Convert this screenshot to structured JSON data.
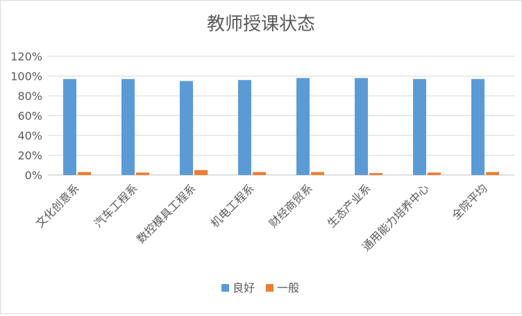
{
  "chart_data": {
    "type": "bar",
    "title": "教师授课状态",
    "categories": [
      "文化创意系",
      "汽车工程系",
      "数控模具工程系",
      "机电工程系",
      "财经商贸系",
      "生态产业系",
      "通用能力培养中心",
      "全院平均"
    ],
    "series": [
      {
        "name": "良好",
        "color": "#5B9BD5",
        "values": [
          0.97,
          0.97,
          0.95,
          0.96,
          0.98,
          0.98,
          0.97,
          0.97
        ]
      },
      {
        "name": "一般",
        "color": "#ED7D31",
        "values": [
          0.03,
          0.025,
          0.05,
          0.03,
          0.03,
          0.02,
          0.025,
          0.03
        ]
      }
    ],
    "yticks": [
      "0%",
      "20%",
      "40%",
      "60%",
      "80%",
      "100%",
      "120%"
    ],
    "ylim": [
      0,
      1.2
    ],
    "grid": true,
    "legend_position": "bottom"
  }
}
